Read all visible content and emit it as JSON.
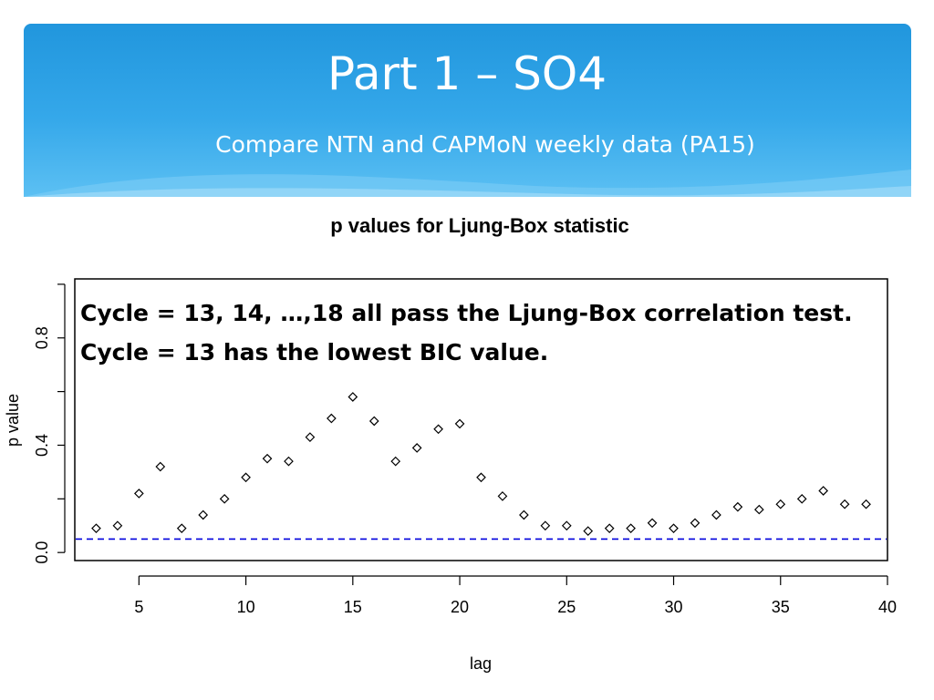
{
  "slide": {
    "title": "Part 1 – SO4",
    "subtitle": "Compare NTN and CAPMoN weekly data (PA15)"
  },
  "annotation": {
    "line1": "Cycle = 13, 14, …,18 all pass the Ljung-Box correlation test.",
    "line2": "Cycle = 13 has the lowest BIC value."
  },
  "colors": {
    "header": "#2196dd",
    "reference_line": "#0000dd"
  },
  "chart_data": {
    "type": "scatter",
    "title": "p values for Ljung-Box statistic",
    "xlabel": "lag",
    "ylabel": "p value",
    "xlim": [
      2,
      40
    ],
    "ylim": [
      -0.03,
      1.02
    ],
    "x_ticks": [
      5,
      10,
      15,
      20,
      25,
      30,
      35,
      40
    ],
    "y_ticks": [
      0.0,
      0.4,
      0.8
    ],
    "x_tick_labels": [
      "5",
      "10",
      "15",
      "20",
      "25",
      "30",
      "35",
      "40"
    ],
    "y_tick_labels": [
      "0.0",
      "0.4",
      "0.8"
    ],
    "marker": "diamond",
    "reference_line": {
      "y": 0.05,
      "style": "dashed"
    },
    "x": [
      3,
      4,
      5,
      6,
      7,
      8,
      9,
      10,
      11,
      12,
      13,
      14,
      15,
      16,
      17,
      18,
      19,
      20,
      21,
      22,
      23,
      24,
      25,
      26,
      27,
      28,
      29,
      30,
      31,
      32,
      33,
      34,
      35,
      36,
      37,
      38,
      39
    ],
    "y": [
      0.09,
      0.1,
      0.22,
      0.32,
      0.09,
      0.14,
      0.2,
      0.28,
      0.35,
      0.34,
      0.43,
      0.5,
      0.58,
      0.49,
      0.34,
      0.39,
      0.46,
      0.48,
      0.28,
      0.21,
      0.14,
      0.1,
      0.1,
      0.08,
      0.09,
      0.09,
      0.11,
      0.09,
      0.11,
      0.14,
      0.17,
      0.16,
      0.18,
      0.2,
      0.23,
      0.18,
      0.18
    ],
    "grid": false
  }
}
